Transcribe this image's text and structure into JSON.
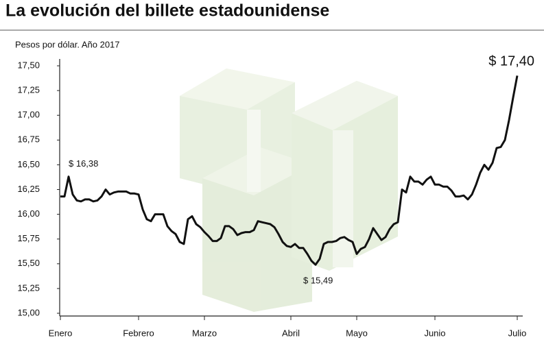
{
  "chart_data": {
    "type": "line",
    "title": "La evolución del billete estadounidense",
    "subtitle": "Pesos por dólar. Año 2017",
    "categories": [
      "Enero",
      null,
      null,
      null,
      null,
      null,
      null,
      null,
      null,
      null,
      null,
      null,
      null,
      null,
      null,
      null,
      null,
      null,
      null,
      "Febrero",
      null,
      null,
      null,
      null,
      null,
      null,
      null,
      null,
      null,
      null,
      null,
      null,
      null,
      null,
      null,
      "Marzo",
      null,
      null,
      null,
      null,
      null,
      null,
      null,
      null,
      null,
      null,
      null,
      null,
      null,
      null,
      null,
      null,
      null,
      null,
      null,
      null,
      "Abril",
      null,
      null,
      null,
      null,
      null,
      null,
      null,
      null,
      null,
      null,
      null,
      null,
      null,
      null,
      null,
      "Mayo",
      null,
      null,
      null,
      null,
      null,
      null,
      null,
      null,
      null,
      null,
      null,
      null,
      null,
      null,
      null,
      null,
      null,
      null,
      "Junio",
      null,
      null,
      null,
      null,
      null,
      null,
      null,
      null,
      null,
      null,
      null,
      null,
      null,
      null,
      null,
      null,
      null,
      null,
      null,
      "Julio"
    ],
    "values": [
      16.18,
      16.18,
      16.38,
      16.2,
      16.14,
      16.13,
      16.15,
      16.15,
      16.13,
      16.14,
      16.18,
      16.25,
      16.2,
      16.22,
      16.23,
      16.23,
      16.23,
      16.21,
      16.21,
      16.2,
      16.05,
      15.95,
      15.93,
      16.0,
      16.0,
      16.0,
      15.88,
      15.83,
      15.8,
      15.72,
      15.7,
      15.95,
      15.98,
      15.9,
      15.87,
      15.82,
      15.78,
      15.73,
      15.73,
      15.76,
      15.88,
      15.88,
      15.85,
      15.79,
      15.81,
      15.82,
      15.82,
      15.84,
      15.93,
      15.92,
      15.91,
      15.9,
      15.87,
      15.8,
      15.72,
      15.68,
      15.67,
      15.7,
      15.66,
      15.66,
      15.6,
      15.53,
      15.49,
      15.55,
      15.7,
      15.72,
      15.72,
      15.73,
      15.76,
      15.77,
      15.74,
      15.72,
      15.6,
      15.65,
      15.67,
      15.75,
      15.86,
      15.8,
      15.74,
      15.77,
      15.85,
      15.9,
      15.92,
      16.25,
      16.22,
      16.38,
      16.33,
      16.33,
      16.3,
      16.35,
      16.38,
      16.3,
      16.3,
      16.28,
      16.28,
      16.24,
      16.18,
      16.18,
      16.19,
      16.15,
      16.2,
      16.3,
      16.42,
      16.5,
      16.45,
      16.52,
      16.67,
      16.68,
      16.75,
      16.95,
      17.18,
      17.4
    ],
    "value_labels": [
      null,
      null,
      "$ 16,38",
      null,
      null,
      null,
      null,
      null,
      null,
      null,
      null,
      null,
      null,
      null,
      null,
      null,
      null,
      null,
      null,
      null,
      null,
      null,
      null,
      null,
      null,
      null,
      null,
      null,
      null,
      null,
      null,
      null,
      null,
      null,
      null,
      null,
      null,
      null,
      null,
      null,
      null,
      null,
      null,
      null,
      null,
      null,
      null,
      null,
      null,
      null,
      null,
      null,
      null,
      null,
      null,
      null,
      null,
      null,
      null,
      null,
      null,
      null,
      "$ 15,49",
      null,
      null,
      null,
      null,
      null,
      null,
      null,
      null,
      null,
      null,
      null,
      null,
      null,
      null,
      null,
      null,
      null,
      null,
      null,
      null,
      null,
      null,
      null,
      null,
      null,
      null,
      null,
      null,
      null,
      null,
      null,
      null,
      null,
      null,
      null,
      null,
      null,
      null,
      null,
      null,
      null,
      null,
      null,
      null,
      null,
      null,
      null,
      null,
      "$ 17,40"
    ],
    "color": "#111111",
    "ylim": [
      15,
      17.5
    ],
    "yticks": [
      {
        "value": 15,
        "label": "15,00"
      },
      {
        "value": 15.25,
        "label": "15,25"
      },
      {
        "value": 15.5,
        "label": "15,50"
      },
      {
        "value": 15.75,
        "label": "15,75"
      },
      {
        "value": 16,
        "label": "16,00"
      },
      {
        "value": 16.25,
        "label": "16,25"
      },
      {
        "value": 16.5,
        "label": "16,50"
      },
      {
        "value": 16.75,
        "label": "16,75"
      },
      {
        "value": 17,
        "label": "17,00"
      },
      {
        "value": 17.25,
        "label": "17,25"
      },
      {
        "value": 17.5,
        "label": "17,50"
      }
    ],
    "grid": false
  }
}
